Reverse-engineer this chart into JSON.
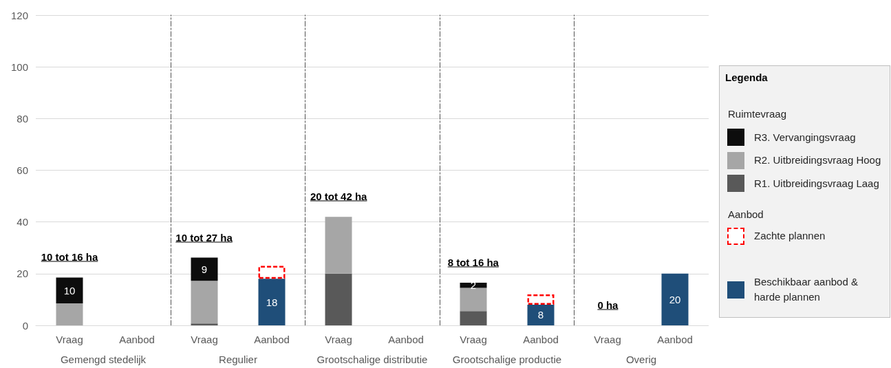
{
  "chart_data": [
    {
      "type": "bar",
      "xlabel": "Gemengd stedelijk",
      "categories": [
        "Vraag",
        "Aanbod"
      ],
      "stacked": true,
      "ylim": [
        0,
        120
      ],
      "yticks": [
        0,
        20,
        40,
        60,
        80,
        100,
        120
      ],
      "grid": "y",
      "series": [
        {
          "color": "#a6a6a6",
          "values": [
            8.5,
            null
          ]
        },
        {
          "color": "#0d0d0d",
          "values": [
            10,
            null
          ],
          "value_labels": [
            "10",
            null
          ]
        }
      ],
      "annotations": [
        "10 tot 16 ha"
      ]
    },
    {
      "type": "bar",
      "xlabel": "Regulier",
      "categories": [
        "Vraag",
        "Aanbod"
      ],
      "stacked": true,
      "ylim": [
        0,
        120
      ],
      "yticks": [
        0,
        20,
        40,
        60,
        80,
        100,
        120
      ],
      "grid": "y",
      "tick_labels": "x",
      "series": [
        {
          "color": "#595959",
          "values": [
            0.7,
            null
          ]
        },
        {
          "color": "#a6a6a6",
          "values": [
            16.5,
            null
          ]
        },
        {
          "color": "#0d0d0d",
          "values": [
            9,
            null
          ],
          "value_labels": [
            "9",
            null
          ]
        },
        {
          "color": "#1f4e79",
          "values": [
            null,
            18
          ],
          "value_labels": [
            null,
            "18"
          ]
        },
        {
          "color": "#ff0000",
          "line_style": "dashed",
          "values": [
            null,
            5
          ]
        }
      ],
      "annotations": [
        "10 tot 27 ha"
      ]
    },
    {
      "type": "bar",
      "xlabel": "Grootschalige distributie",
      "categories": [
        "Vraag",
        "Aanbod"
      ],
      "stacked": true,
      "ylim": [
        0,
        120
      ],
      "yticks": [
        0,
        20,
        40,
        60,
        80,
        100,
        120
      ],
      "grid": "y",
      "tick_labels": "x",
      "series": [
        {
          "color": "#595959",
          "values": [
            20,
            null
          ]
        },
        {
          "color": "#a6a6a6",
          "values": [
            22,
            null
          ]
        }
      ],
      "annotations": [
        "20 tot 42 ha"
      ]
    },
    {
      "type": "bar",
      "xlabel": "Grootschalige productie",
      "categories": [
        "Vraag",
        "Aanbod"
      ],
      "stacked": true,
      "ylim": [
        0,
        120
      ],
      "yticks": [
        0,
        20,
        40,
        60,
        80,
        100,
        120
      ],
      "grid": "y",
      "tick_labels": "x",
      "series": [
        {
          "color": "#595959",
          "values": [
            5.5,
            null
          ]
        },
        {
          "color": "#a6a6a6",
          "values": [
            9,
            null
          ]
        },
        {
          "color": "#0d0d0d",
          "values": [
            2,
            null
          ],
          "value_labels": [
            "2",
            null
          ]
        },
        {
          "color": "#1f4e79",
          "values": [
            null,
            8
          ],
          "value_labels": [
            null,
            "8"
          ]
        },
        {
          "color": "#ff0000",
          "line_style": "dashed",
          "values": [
            null,
            4
          ]
        }
      ],
      "annotations": [
        "8 tot 16 ha"
      ]
    },
    {
      "type": "bar",
      "xlabel": "Overig",
      "categories": [
        "Vraag",
        "Aanbod"
      ],
      "stacked": true,
      "ylim": [
        0,
        120
      ],
      "yticks": [
        0,
        20,
        40,
        60,
        80,
        100,
        120
      ],
      "grid": "y",
      "tick_labels": "x",
      "legend": "right",
      "legend_title": "Legenda",
      "series": [
        {
          "name": "R1. Uitbreidingsvraag Laag",
          "color": "#595959",
          "values": [
            null,
            null
          ]
        },
        {
          "name": "R2. Uitbreidingsvraag Hoog",
          "color": "#a6a6a6",
          "values": [
            null,
            null
          ]
        },
        {
          "name": "R3. Vervangingsvraag",
          "color": "#0d0d0d",
          "values": [
            null,
            null
          ]
        },
        {
          "name": "Beschikbaar aanbod & harde plannen",
          "color": "#1f4e79",
          "values": [
            null,
            20
          ],
          "value_labels": [
            null,
            "20"
          ]
        },
        {
          "name": "Zachte plannen",
          "color": "#ff0000",
          "line_style": "dashed",
          "values": [
            null,
            null
          ]
        }
      ],
      "annotations": [
        "0 ha",
        "Ruimtevraag",
        "Aanbod"
      ]
    }
  ]
}
